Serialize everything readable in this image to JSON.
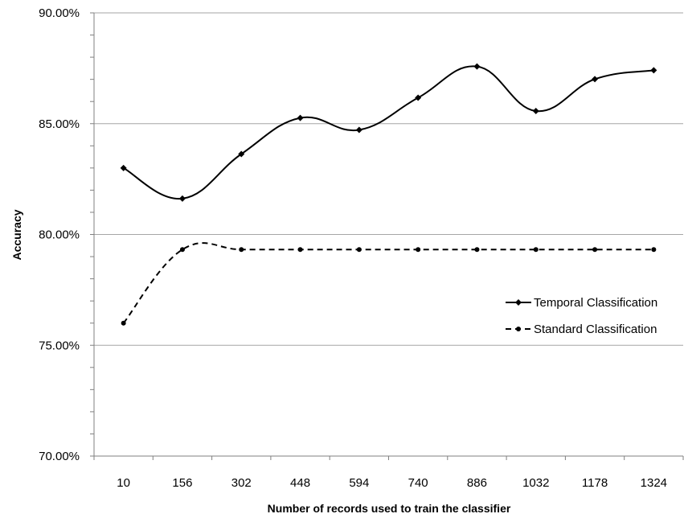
{
  "chart_data": {
    "type": "line",
    "title": "",
    "xlabel": "Number of records used to train the classifier",
    "ylabel": "Accuracy",
    "categories": [
      "10",
      "156",
      "302",
      "448",
      "594",
      "740",
      "886",
      "1032",
      "1178",
      "1324"
    ],
    "ylim": [
      0.7,
      0.9
    ],
    "yticks": [
      "70.00%",
      "75.00%",
      "80.00%",
      "85.00%",
      "90.00%"
    ],
    "grid": "horizontal",
    "legend_position": "right",
    "series": [
      {
        "name": "Temporal Classification",
        "style": "solid",
        "marker": "diamond",
        "smooth": true,
        "color": "#000000",
        "values": [
          0.83,
          0.8162,
          0.8363,
          0.8526,
          0.8472,
          0.8617,
          0.8758,
          0.8557,
          0.8701,
          0.8741
        ]
      },
      {
        "name": "Standard Classification",
        "style": "dashed",
        "marker": "circle",
        "smooth": true,
        "color": "#000000",
        "values": [
          0.76,
          0.7932,
          0.7932,
          0.7932,
          0.7932,
          0.7932,
          0.7932,
          0.7932,
          0.7932,
          0.7932
        ]
      }
    ]
  }
}
